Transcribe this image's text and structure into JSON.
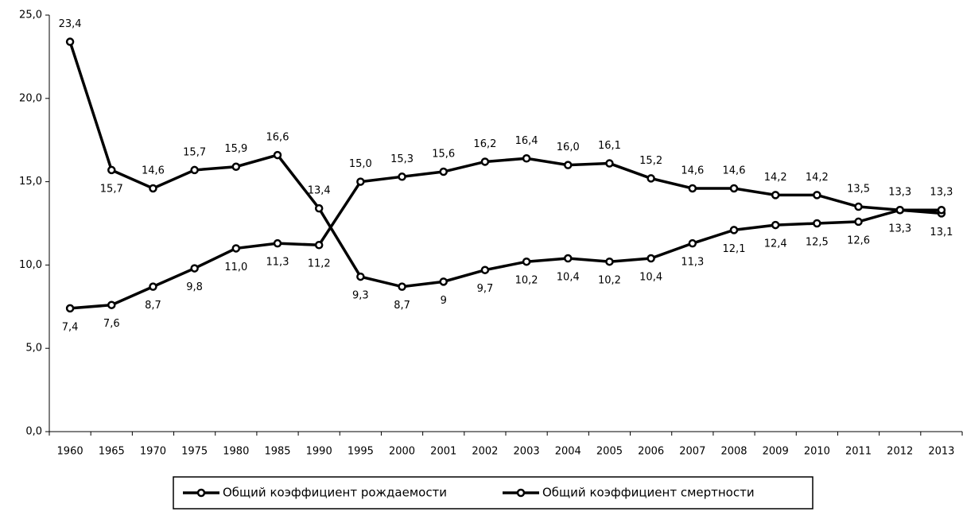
{
  "chart_data": {
    "type": "line",
    "categories": [
      "1960",
      "1965",
      "1970",
      "1975",
      "1980",
      "1985",
      "1990",
      "1995",
      "2000",
      "2001",
      "2002",
      "2003",
      "2004",
      "2005",
      "2006",
      "2007",
      "2008",
      "2009",
      "2010",
      "2011",
      "2012",
      "2013"
    ],
    "series": [
      {
        "name": "Общий коэффициент рождаемости",
        "color": "#000000",
        "values": [
          23.4,
          15.7,
          14.6,
          15.7,
          15.9,
          16.6,
          13.4,
          9.3,
          8.7,
          9,
          9.7,
          10.2,
          10.4,
          10.2,
          10.4,
          11.3,
          12.1,
          12.4,
          12.5,
          12.6,
          13.3,
          13.1
        ],
        "value_labels": [
          "23,4",
          "15,7",
          "14,6",
          "15,7",
          "15,9",
          "16,6",
          "13,4",
          "9,3",
          "8,7",
          "9",
          "9,7",
          "10,2",
          "10,4",
          "10,2",
          "10,4",
          "11,3",
          "12,1",
          "12,4",
          "12,5",
          "12,6",
          "13,3",
          "13,1"
        ]
      },
      {
        "name": "Общий коэффициент смертности",
        "color": "#000000",
        "values": [
          7.4,
          7.6,
          8.7,
          9.8,
          11.0,
          11.3,
          11.2,
          15.0,
          15.3,
          15.6,
          16.2,
          16.4,
          16.0,
          16.1,
          15.2,
          14.6,
          14.6,
          14.2,
          14.2,
          13.5,
          13.3,
          13.3
        ],
        "value_labels": [
          "7,4",
          "7,6",
          "8,7",
          "9,8",
          "11,0",
          "11,3",
          "11,2",
          "15,0",
          "15,3",
          "15,6",
          "16,2",
          "16,4",
          "16,0",
          "16,1",
          "15,2",
          "14,6",
          "14,6",
          "14,2",
          "14,2",
          "13,5",
          "13,3",
          "13,3"
        ]
      }
    ],
    "ylim": [
      0,
      25
    ],
    "yticks": [
      {
        "value": 0,
        "label": "0,0"
      },
      {
        "value": 5,
        "label": "5,0"
      },
      {
        "value": 10,
        "label": "10,0"
      },
      {
        "value": 15,
        "label": "15,0"
      },
      {
        "value": 20,
        "label": "20,0"
      },
      {
        "value": 25,
        "label": "25,0"
      }
    ],
    "legend": "bottom"
  }
}
